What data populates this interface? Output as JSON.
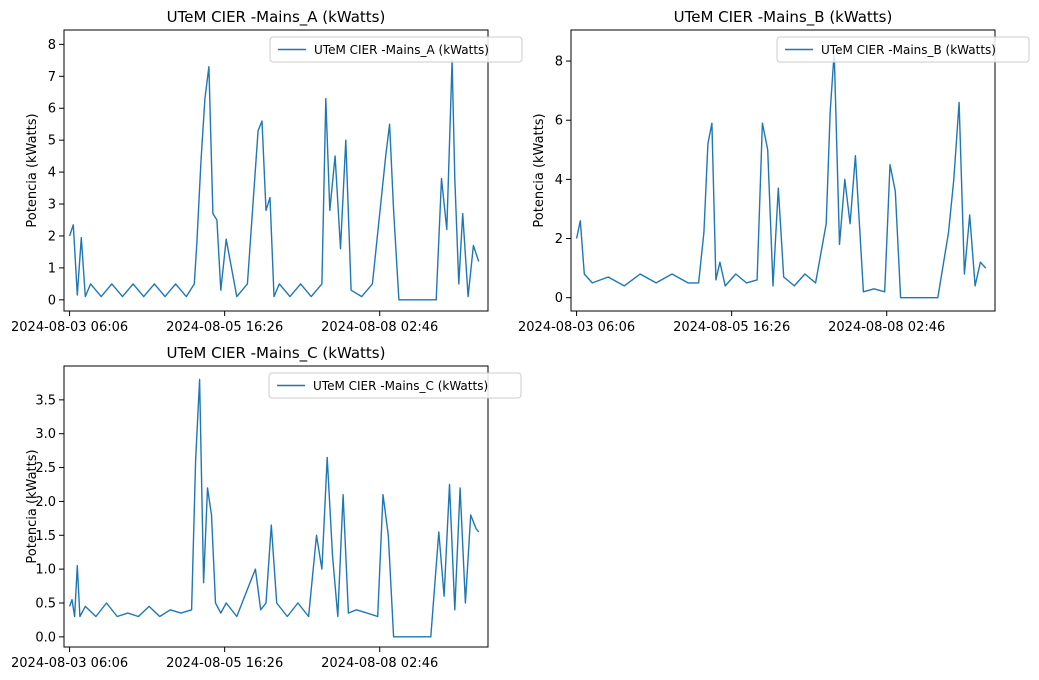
{
  "colors": {
    "series": "#1f77b4"
  },
  "chart_data": [
    {
      "type": "line",
      "title": "UTeM CIER -Mains_A (kWatts)",
      "ylabel": "Potencia (kWatts)",
      "legend": "top-right",
      "grid": false,
      "x_tick_labels": [
        "2024-08-03 06:06",
        "2024-08-05 16:26",
        "2024-08-08 02:46"
      ],
      "ylim": [
        -0.35,
        8.45
      ],
      "y_ticks": [
        0,
        1,
        2,
        3,
        4,
        5,
        6,
        7,
        8
      ],
      "series": [
        {
          "name": "UTeM CIER -Mains_A (kWatts)",
          "x": [
            "2024-08-03 06:06",
            "2024-08-03 07:30",
            "2024-08-03 09:00",
            "2024-08-03 10:30",
            "2024-08-03 12:00",
            "2024-08-03 14:00",
            "2024-08-03 18:00",
            "2024-08-03 22:00",
            "2024-08-04 02:00",
            "2024-08-04 06:00",
            "2024-08-04 10:00",
            "2024-08-04 14:00",
            "2024-08-04 18:00",
            "2024-08-04 22:00",
            "2024-08-05 02:00",
            "2024-08-05 05:00",
            "2024-08-05 06:00",
            "2024-08-05 07:30",
            "2024-08-05 09:00",
            "2024-08-05 10:30",
            "2024-08-05 12:00",
            "2024-08-05 13:30",
            "2024-08-05 15:00",
            "2024-08-05 17:00",
            "2024-08-05 21:00",
            "2024-08-06 01:00",
            "2024-08-06 05:00",
            "2024-08-06 06:30",
            "2024-08-06 08:00",
            "2024-08-06 09:30",
            "2024-08-06 11:00",
            "2024-08-06 13:00",
            "2024-08-06 17:00",
            "2024-08-06 21:00",
            "2024-08-07 01:00",
            "2024-08-07 05:00",
            "2024-08-07 06:30",
            "2024-08-07 08:00",
            "2024-08-07 10:00",
            "2024-08-07 12:00",
            "2024-08-07 14:00",
            "2024-08-07 16:00",
            "2024-08-07 20:00",
            "2024-08-08 00:00",
            "2024-08-08 05:00",
            "2024-08-08 06:30",
            "2024-08-08 08:00",
            "2024-08-08 10:00",
            "2024-08-08 12:00",
            "2024-08-08 16:00",
            "2024-08-08 20:00",
            "2024-08-09 00:00",
            "2024-08-09 02:00",
            "2024-08-09 04:00",
            "2024-08-09 06:00",
            "2024-08-09 07:00",
            "2024-08-09 08:30",
            "2024-08-09 10:00",
            "2024-08-09 12:00",
            "2024-08-09 14:00",
            "2024-08-09 16:00"
          ],
          "values": [
            2.0,
            2.35,
            0.15,
            1.95,
            0.1,
            0.5,
            0.1,
            0.5,
            0.1,
            0.5,
            0.1,
            0.5,
            0.1,
            0.5,
            0.1,
            0.5,
            1.8,
            4.3,
            6.3,
            7.3,
            2.7,
            2.5,
            0.3,
            1.9,
            0.1,
            0.5,
            5.3,
            5.6,
            2.8,
            3.2,
            0.1,
            0.5,
            0.1,
            0.5,
            0.1,
            0.5,
            6.3,
            2.8,
            4.5,
            1.6,
            5.0,
            0.3,
            0.1,
            0.5,
            4.5,
            5.5,
            2.8,
            0.0,
            0.0,
            0.0,
            0.0,
            0.0,
            3.8,
            2.2,
            7.5,
            3.8,
            0.5,
            2.7,
            0.1,
            1.7,
            1.2
          ]
        }
      ]
    },
    {
      "type": "line",
      "title": "UTeM CIER -Mains_B (kWatts)",
      "ylabel": "Potencia (kWatts)",
      "legend": "top-right",
      "grid": false,
      "x_tick_labels": [
        "2024-08-03 06:06",
        "2024-08-05 16:26",
        "2024-08-08 02:46"
      ],
      "ylim": [
        -0.45,
        9.05
      ],
      "y_ticks": [
        0,
        2,
        4,
        6,
        8
      ],
      "series": [
        {
          "name": "UTeM CIER -Mains_B (kWatts)",
          "x": [
            "2024-08-03 06:06",
            "2024-08-03 07:30",
            "2024-08-03 09:00",
            "2024-08-03 12:00",
            "2024-08-03 18:00",
            "2024-08-04 00:00",
            "2024-08-04 06:00",
            "2024-08-04 12:00",
            "2024-08-04 18:00",
            "2024-08-05 00:00",
            "2024-08-05 04:00",
            "2024-08-05 06:00",
            "2024-08-05 07:30",
            "2024-08-05 09:00",
            "2024-08-05 10:30",
            "2024-08-05 12:00",
            "2024-08-05 14:00",
            "2024-08-05 18:00",
            "2024-08-05 22:00",
            "2024-08-06 02:00",
            "2024-08-06 04:00",
            "2024-08-06 06:00",
            "2024-08-06 08:00",
            "2024-08-06 10:00",
            "2024-08-06 12:00",
            "2024-08-06 16:00",
            "2024-08-06 20:00",
            "2024-08-07 00:00",
            "2024-08-07 04:00",
            "2024-08-07 05:30",
            "2024-08-07 07:00",
            "2024-08-07 09:00",
            "2024-08-07 11:00",
            "2024-08-07 13:00",
            "2024-08-07 15:00",
            "2024-08-07 18:00",
            "2024-08-07 22:00",
            "2024-08-08 02:00",
            "2024-08-08 04:00",
            "2024-08-08 06:00",
            "2024-08-08 08:00",
            "2024-08-08 10:00",
            "2024-08-08 14:00",
            "2024-08-08 18:00",
            "2024-08-08 22:00",
            "2024-08-09 02:00",
            "2024-08-09 04:00",
            "2024-08-09 06:00",
            "2024-08-09 08:00",
            "2024-08-09 10:00",
            "2024-08-09 12:00",
            "2024-08-09 14:00",
            "2024-08-09 16:00"
          ],
          "values": [
            2.0,
            2.6,
            0.8,
            0.5,
            0.7,
            0.4,
            0.8,
            0.5,
            0.8,
            0.5,
            0.5,
            2.2,
            5.2,
            5.9,
            0.6,
            1.2,
            0.4,
            0.8,
            0.5,
            0.6,
            5.9,
            5.0,
            0.4,
            3.7,
            0.7,
            0.4,
            0.8,
            0.5,
            2.5,
            6.3,
            8.3,
            1.8,
            4.0,
            2.5,
            4.8,
            0.2,
            0.3,
            0.2,
            4.5,
            3.6,
            0.0,
            0.0,
            0.0,
            0.0,
            0.0,
            2.2,
            4.0,
            6.6,
            0.8,
            2.8,
            0.4,
            1.2,
            1.0
          ]
        }
      ]
    },
    {
      "type": "line",
      "title": "UTeM CIER -Mains_C (kWatts)",
      "ylabel": "Potencia (kWatts)",
      "legend": "top-right",
      "grid": false,
      "x_tick_labels": [
        "2024-08-03 06:06",
        "2024-08-05 16:26",
        "2024-08-08 02:46"
      ],
      "ylim": [
        -0.15,
        4.0
      ],
      "y_ticks": [
        0.0,
        0.5,
        1.0,
        1.5,
        2.0,
        2.5,
        3.0,
        3.5
      ],
      "series": [
        {
          "name": "UTeM CIER -Mains_C (kWatts)",
          "x": [
            "2024-08-03 06:06",
            "2024-08-03 07:00",
            "2024-08-03 08:00",
            "2024-08-03 09:00",
            "2024-08-03 10:00",
            "2024-08-03 12:00",
            "2024-08-03 16:00",
            "2024-08-03 20:00",
            "2024-08-04 00:00",
            "2024-08-04 04:00",
            "2024-08-04 08:00",
            "2024-08-04 12:00",
            "2024-08-04 16:00",
            "2024-08-04 20:00",
            "2024-08-05 00:00",
            "2024-08-05 04:00",
            "2024-08-05 05:30",
            "2024-08-05 07:00",
            "2024-08-05 08:30",
            "2024-08-05 10:00",
            "2024-08-05 11:30",
            "2024-08-05 13:00",
            "2024-08-05 15:00",
            "2024-08-05 17:00",
            "2024-08-05 21:00",
            "2024-08-06 01:00",
            "2024-08-06 04:00",
            "2024-08-06 06:00",
            "2024-08-06 08:00",
            "2024-08-06 10:00",
            "2024-08-06 12:00",
            "2024-08-06 16:00",
            "2024-08-06 20:00",
            "2024-08-07 00:00",
            "2024-08-07 03:00",
            "2024-08-07 05:00",
            "2024-08-07 07:00",
            "2024-08-07 09:00",
            "2024-08-07 11:00",
            "2024-08-07 13:00",
            "2024-08-07 15:00",
            "2024-08-07 18:00",
            "2024-08-07 22:00",
            "2024-08-08 02:00",
            "2024-08-08 04:00",
            "2024-08-08 06:00",
            "2024-08-08 08:00",
            "2024-08-08 10:00",
            "2024-08-08 14:00",
            "2024-08-08 18:00",
            "2024-08-08 22:00",
            "2024-08-09 01:00",
            "2024-08-09 03:00",
            "2024-08-09 05:00",
            "2024-08-09 07:00",
            "2024-08-09 09:00",
            "2024-08-09 11:00",
            "2024-08-09 13:00",
            "2024-08-09 15:00",
            "2024-08-09 16:00"
          ],
          "values": [
            0.45,
            0.55,
            0.3,
            1.05,
            0.3,
            0.45,
            0.3,
            0.5,
            0.3,
            0.35,
            0.3,
            0.45,
            0.3,
            0.4,
            0.35,
            0.4,
            2.6,
            3.8,
            0.8,
            2.2,
            1.8,
            0.5,
            0.35,
            0.5,
            0.3,
            0.7,
            1.0,
            0.4,
            0.5,
            1.65,
            0.5,
            0.3,
            0.5,
            0.3,
            1.5,
            1.0,
            2.65,
            1.2,
            0.3,
            2.1,
            0.35,
            0.4,
            0.35,
            0.3,
            2.1,
            1.5,
            0.0,
            0.0,
            0.0,
            0.0,
            0.0,
            1.55,
            0.6,
            2.25,
            0.4,
            2.2,
            0.5,
            1.8,
            1.6,
            1.55
          ]
        }
      ]
    }
  ]
}
